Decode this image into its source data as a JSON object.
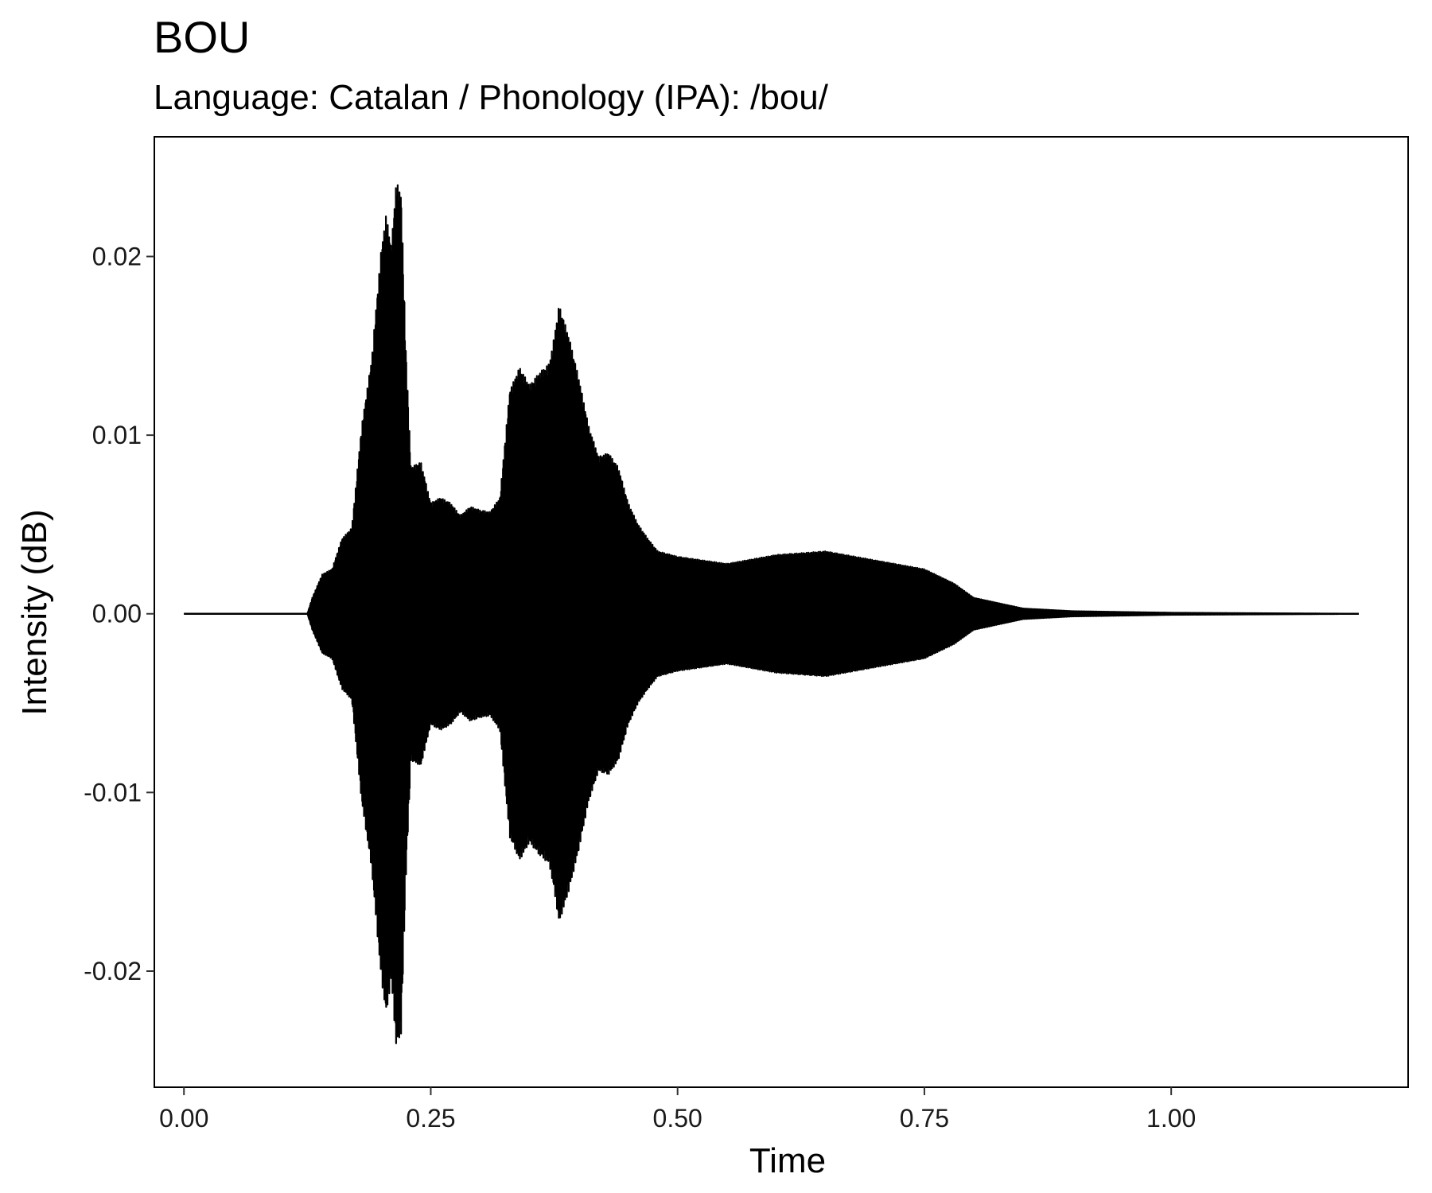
{
  "chart_data": {
    "type": "line",
    "title": "BOU",
    "subtitle": "Language: Catalan / Phonology (IPA): /bou/",
    "xlabel": "Time",
    "ylabel": "Intensity (dB)",
    "xlim": [
      -0.03,
      1.24
    ],
    "ylim": [
      -0.0265,
      0.0267
    ],
    "x_ticks": [
      0.0,
      0.25,
      0.5,
      0.75,
      1.0
    ],
    "x_tick_labels": [
      "0.00",
      "0.25",
      "0.50",
      "0.75",
      "1.00"
    ],
    "y_ticks": [
      0.02,
      0.01,
      0.0,
      -0.01,
      -0.02
    ],
    "y_tick_labels": [
      "0.02",
      "0.01",
      "0.00",
      "-0.01",
      "-0.02"
    ],
    "grid": false,
    "line_color": "#000000",
    "series": [
      {
        "x": [
          0.0,
          0.125,
          0.13,
          0.14,
          0.15,
          0.16,
          0.17,
          0.18,
          0.19,
          0.2,
          0.205,
          0.21,
          0.215,
          0.22,
          0.225,
          0.23,
          0.24,
          0.25,
          0.26,
          0.27,
          0.28,
          0.29,
          0.3,
          0.31,
          0.32,
          0.33,
          0.34,
          0.35,
          0.36,
          0.37,
          0.375,
          0.38,
          0.39,
          0.4,
          0.41,
          0.42,
          0.43,
          0.44,
          0.45,
          0.46,
          0.47,
          0.48,
          0.5,
          0.55,
          0.6,
          0.65,
          0.7,
          0.75,
          0.78,
          0.8,
          0.85,
          0.9,
          1.0,
          1.1,
          1.19
        ],
        "envelope": [
          0.0,
          0.0,
          0.0009,
          0.0022,
          0.0025,
          0.0042,
          0.0048,
          0.0105,
          0.0142,
          0.0205,
          0.0224,
          0.0205,
          0.0242,
          0.0235,
          0.0145,
          0.0082,
          0.0085,
          0.0062,
          0.0065,
          0.0062,
          0.0055,
          0.006,
          0.0058,
          0.0057,
          0.0065,
          0.0125,
          0.0138,
          0.0128,
          0.0135,
          0.014,
          0.0155,
          0.0173,
          0.0155,
          0.0132,
          0.0105,
          0.0088,
          0.009,
          0.0082,
          0.0062,
          0.005,
          0.0042,
          0.0035,
          0.0032,
          0.0028,
          0.0033,
          0.0035,
          0.003,
          0.0025,
          0.0017,
          0.0009,
          0.0003,
          0.00015,
          6e-05,
          3e-05,
          0.0
        ]
      }
    ]
  }
}
